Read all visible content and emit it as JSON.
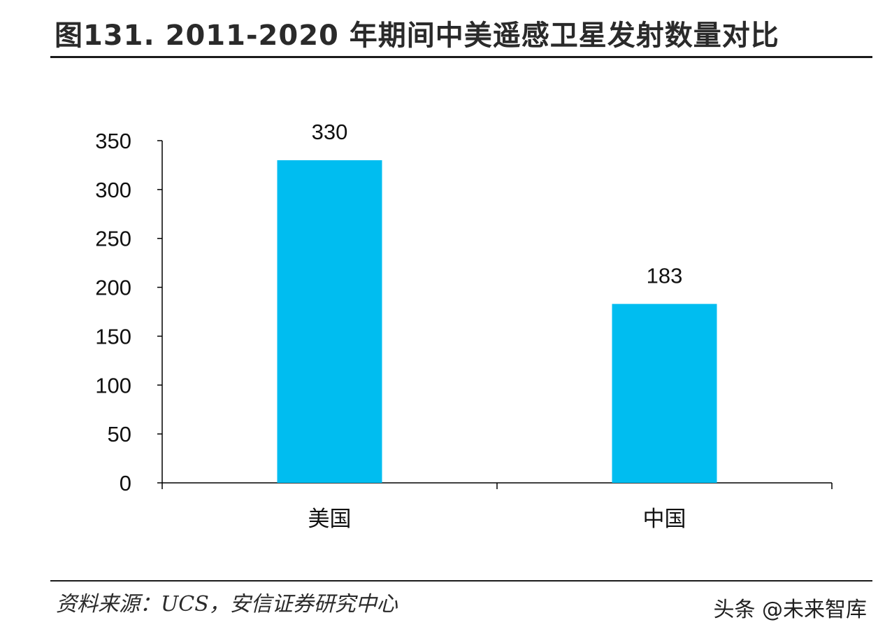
{
  "header": {
    "title": "图131. 2011-2020 年期间中美遥感卫星发射数量对比"
  },
  "footer": {
    "source": "资料来源：UCS，安信证券研究中心",
    "watermark": "头条 @未来智库"
  },
  "colors": {
    "bar": "#00BDF0",
    "axis": "#000000"
  },
  "chart_data": {
    "type": "bar",
    "title": "图131. 2011-2020 年期间中美遥感卫星发射数量对比",
    "categories": [
      "美国",
      "中国"
    ],
    "values": [
      330,
      183
    ],
    "data_labels": [
      "330",
      "183"
    ],
    "xlabel": "",
    "ylabel": "",
    "ylim": [
      0,
      350
    ],
    "yticks": [
      0,
      50,
      100,
      150,
      200,
      250,
      300,
      350
    ],
    "grid": false,
    "legend": "none"
  }
}
